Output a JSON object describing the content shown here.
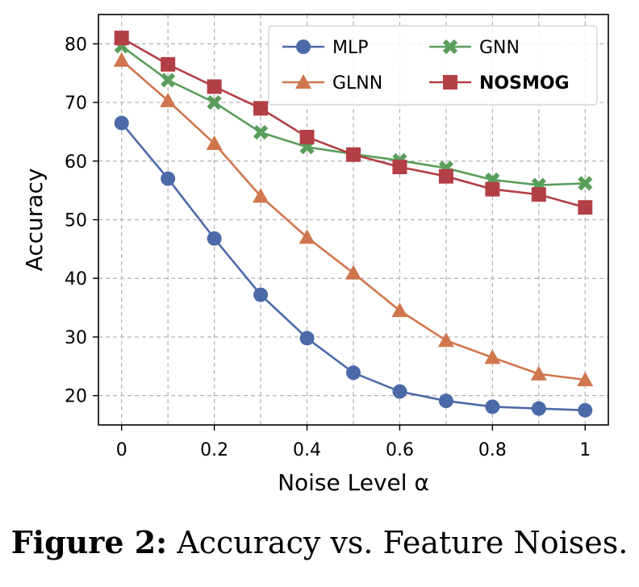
{
  "chart_data": {
    "type": "line",
    "x": [
      0,
      0.1,
      0.2,
      0.3,
      0.4,
      0.5,
      0.6,
      0.7,
      0.8,
      0.9,
      1.0
    ],
    "series": [
      {
        "name": "MLP",
        "color": "#4c6aa8",
        "marker": "circle",
        "values": [
          66.5,
          57.0,
          46.8,
          37.2,
          29.8,
          23.9,
          20.7,
          19.1,
          18.1,
          17.8,
          17.5
        ]
      },
      {
        "name": "GLNN",
        "color": "#d0764c",
        "marker": "triangle",
        "values": [
          77.2,
          70.3,
          63.0,
          54.0,
          47.0,
          40.9,
          34.5,
          29.4,
          26.5,
          23.7,
          22.7
        ]
      },
      {
        "name": "GNN",
        "color": "#5a9e5b",
        "marker": "x",
        "values": [
          79.6,
          73.8,
          70.0,
          64.9,
          62.4,
          61.2,
          60.1,
          58.8,
          56.8,
          55.9,
          56.2
        ]
      },
      {
        "name": "NOSMOG",
        "color": "#b23f45",
        "marker": "square",
        "bold": true,
        "values": [
          81.0,
          76.5,
          72.7,
          69.0,
          64.1,
          61.1,
          59.0,
          57.4,
          55.2,
          54.3,
          52.1
        ]
      }
    ],
    "xlabel": "Noise Level α",
    "ylabel": "Accuracy",
    "xlim": [
      -0.05,
      1.05
    ],
    "ylim": [
      15,
      85
    ],
    "xticks": [
      0,
      0.2,
      0.4,
      0.6,
      0.8,
      1.0
    ],
    "xtick_labels": [
      "0",
      "0.2",
      "0.4",
      "0.6",
      "0.8",
      "1"
    ],
    "yticks": [
      20,
      30,
      40,
      50,
      60,
      70,
      80
    ],
    "ytick_labels": [
      "20",
      "30",
      "40",
      "50",
      "60",
      "70",
      "80"
    ],
    "grid": true,
    "legend_position": "top-right"
  },
  "caption": {
    "label": "Figure 2:",
    "text": " Accuracy vs. Feature Noises."
  }
}
